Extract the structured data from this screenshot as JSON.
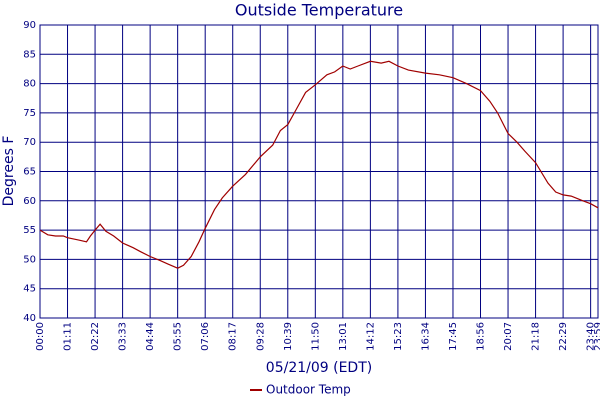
{
  "chart_data": {
    "type": "line",
    "title": "Outside Temperature",
    "x_label": "05/21/09 (EDT)",
    "y_label": "Degrees F",
    "x": [
      "00:00",
      "00:20",
      "00:40",
      "01:00",
      "01:11",
      "01:40",
      "02:00",
      "02:10",
      "02:22",
      "02:35",
      "02:50",
      "03:10",
      "03:33",
      "04:00",
      "04:20",
      "04:44",
      "05:10",
      "05:30",
      "05:55",
      "06:10",
      "06:30",
      "06:50",
      "07:06",
      "07:30",
      "07:50",
      "08:17",
      "08:50",
      "09:28",
      "10:00",
      "10:20",
      "10:39",
      "11:00",
      "11:25",
      "11:50",
      "12:20",
      "12:40",
      "13:01",
      "13:20",
      "13:40",
      "14:12",
      "14:40",
      "15:00",
      "15:23",
      "15:50",
      "16:34",
      "17:10",
      "17:45",
      "18:20",
      "18:56",
      "19:20",
      "19:40",
      "20:07",
      "20:30",
      "20:50",
      "21:18",
      "21:50",
      "22:10",
      "22:29",
      "22:50",
      "23:20",
      "23:40",
      "23:59"
    ],
    "series": [
      {
        "name": "Outdoor Temp",
        "color": "#a00000",
        "values": [
          55,
          54.2,
          54,
          54,
          53.7,
          53.3,
          53,
          54,
          55,
          56,
          54.8,
          54,
          52.8,
          52,
          51.3,
          50.5,
          49.8,
          49.2,
          48.5,
          49,
          50.5,
          53,
          55.3,
          58.5,
          60.5,
          62.5,
          64.5,
          67.5,
          69.5,
          72,
          73,
          75.5,
          78.5,
          79.8,
          81.5,
          82,
          83,
          82.5,
          83,
          83.8,
          83.5,
          83.8,
          83,
          82.3,
          81.8,
          81.5,
          81,
          80,
          78.8,
          77,
          75,
          71.5,
          70,
          68.5,
          66.5,
          63,
          61.5,
          61,
          60.8,
          60,
          59.5,
          58.8
        ]
      }
    ],
    "xlim": [
      "00:00",
      "23:59"
    ],
    "xticks": [
      "00:00",
      "01:11",
      "02:22",
      "03:33",
      "04:44",
      "05:55",
      "07:06",
      "08:17",
      "09:28",
      "10:39",
      "11:50",
      "13:01",
      "14:12",
      "15:23",
      "16:34",
      "17:45",
      "18:56",
      "20:07",
      "21:18",
      "22:29",
      "23:40",
      "23:59"
    ],
    "ylim": [
      40,
      90
    ],
    "yticks": [
      40,
      45,
      50,
      55,
      60,
      65,
      70,
      75,
      80,
      85,
      90
    ],
    "grid": true,
    "legend": "bottom"
  }
}
